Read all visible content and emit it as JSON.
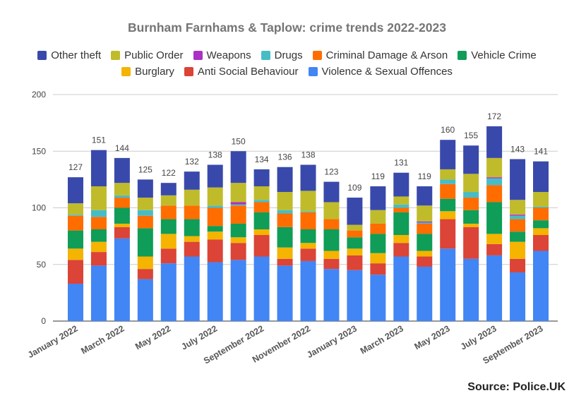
{
  "chart_data": {
    "type": "bar",
    "stacked": true,
    "title": "Burnham Farnhams & Taplow: crime trends 2022-2023",
    "xlabel": "",
    "ylabel": "",
    "ylim": [
      0,
      200
    ],
    "yticks": [
      0,
      50,
      100,
      150,
      200
    ],
    "grid": true,
    "legend_position": "top",
    "categories": [
      "January 2022",
      "February 2022",
      "March 2022",
      "April 2022",
      "May 2022",
      "June 2022",
      "July 2022",
      "August 2022",
      "September 2022",
      "October 2022",
      "November 2022",
      "December 2022",
      "January 2023",
      "February 2023",
      "March 2023",
      "April 2023",
      "May 2023",
      "June 2023",
      "July 2023",
      "August 2023",
      "September 2023"
    ],
    "shown_xtick_labels": [
      "January 2022",
      "March 2022",
      "May 2022",
      "July 2022",
      "September 2022",
      "November 2022",
      "January 2023",
      "March 2023",
      "May 2023",
      "July 2023",
      "September 2023"
    ],
    "totals": [
      127,
      151,
      144,
      125,
      122,
      132,
      138,
      150,
      134,
      136,
      138,
      123,
      109,
      119,
      131,
      119,
      160,
      155,
      172,
      143,
      141
    ],
    "series": [
      {
        "name": "Violence & Sexual Offences",
        "color": "#4285f4",
        "values": [
          33,
          49,
          73,
          37,
          51,
          57,
          52,
          54,
          57,
          49,
          53,
          46,
          45,
          41,
          57,
          48,
          64,
          55,
          58,
          43,
          62
        ]
      },
      {
        "name": "Anti Social Behaviour",
        "color": "#db4437",
        "values": [
          21,
          12,
          10,
          9,
          13,
          13,
          20,
          15,
          19,
          6,
          11,
          9,
          13,
          10,
          12,
          9,
          26,
          28,
          10,
          12,
          14
        ]
      },
      {
        "name": "Burglary",
        "color": "#f4b400",
        "values": [
          10,
          9,
          3,
          11,
          13,
          5,
          7,
          5,
          5,
          10,
          5,
          7,
          6,
          9,
          7,
          5,
          7,
          3,
          9,
          15,
          6
        ]
      },
      {
        "name": "Vehicle Crime",
        "color": "#0f9d58",
        "values": [
          16,
          11,
          14,
          25,
          13,
          15,
          5,
          12,
          15,
          18,
          12,
          19,
          10,
          17,
          20,
          15,
          11,
          12,
          28,
          9,
          7
        ]
      },
      {
        "name": "Criminal Damage & Arson",
        "color": "#ff6d00",
        "values": [
          13,
          11,
          9,
          11,
          12,
          12,
          16,
          16,
          9,
          12,
          15,
          9,
          6,
          9,
          4,
          9,
          13,
          11,
          15,
          11,
          11
        ]
      },
      {
        "name": "Drugs",
        "color": "#46bdc6",
        "values": [
          1,
          6,
          2,
          5,
          0,
          0,
          2,
          1,
          2,
          3,
          1,
          0,
          0,
          0,
          3,
          1,
          4,
          5,
          6,
          3,
          1
        ]
      },
      {
        "name": "Weapons",
        "color": "#ab30c4",
        "values": [
          0,
          0,
          0,
          0,
          0,
          0,
          0,
          2,
          0,
          0,
          0,
          0,
          0,
          0,
          0,
          1,
          0,
          0,
          1,
          1,
          0
        ]
      },
      {
        "name": "Public Order",
        "color": "#c0bb2b",
        "values": [
          10,
          21,
          11,
          11,
          9,
          14,
          16,
          17,
          12,
          16,
          18,
          15,
          5,
          12,
          7,
          14,
          9,
          16,
          17,
          13,
          13
        ]
      },
      {
        "name": "Other theft",
        "color": "#3949ab",
        "values": [
          23,
          32,
          22,
          16,
          11,
          16,
          20,
          28,
          15,
          22,
          23,
          18,
          24,
          21,
          21,
          17,
          26,
          25,
          28,
          36,
          27
        ]
      }
    ]
  },
  "legend": {
    "row1": [
      "Other theft",
      "Public Order",
      "Weapons",
      "Drugs",
      "Criminal Damage & Arson",
      "Vehicle Crime"
    ],
    "row2": [
      "Burglary",
      "Anti Social Behaviour",
      "Violence & Sexual Offences"
    ]
  },
  "source": "Source: Police.UK"
}
